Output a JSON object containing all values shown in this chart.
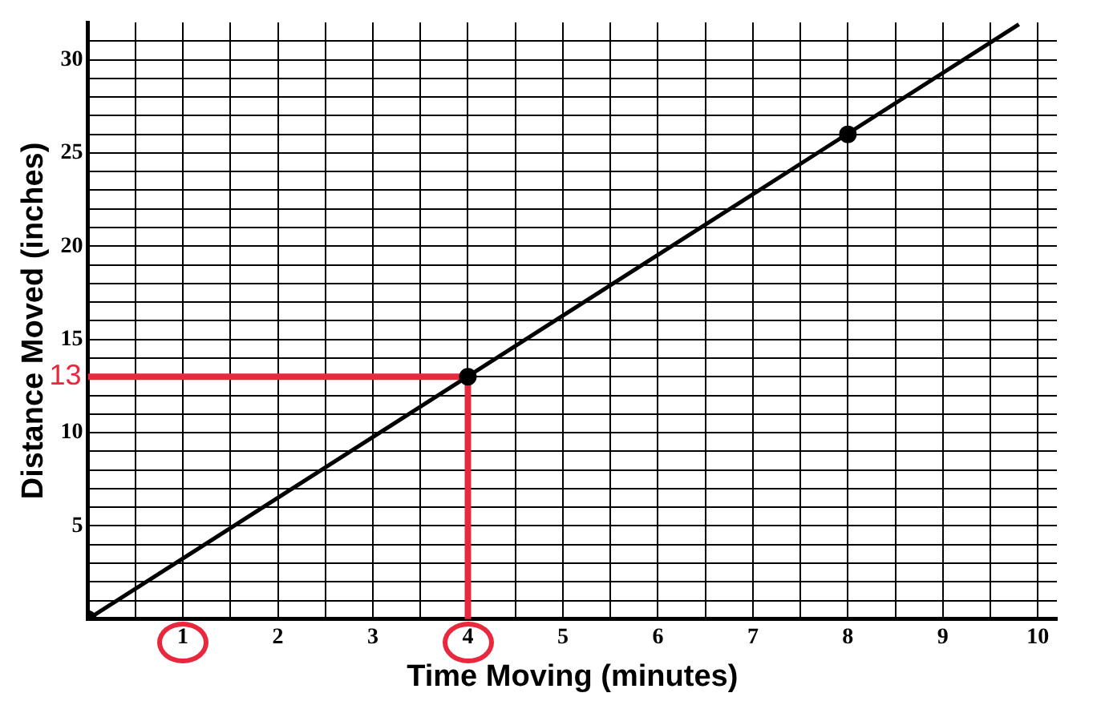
{
  "chart_data": {
    "type": "line",
    "xlabel": "Time Moving (minutes)",
    "ylabel": "Distance Moved (inches)",
    "xlim": [
      0,
      10.2
    ],
    "ylim": [
      0,
      32
    ],
    "xticks": [
      {
        "value": 0,
        "label": null
      },
      {
        "value": 0.5,
        "label": null
      },
      1,
      {
        "value": 1.5,
        "label": null
      },
      2,
      {
        "value": 2.5,
        "label": null
      },
      3,
      {
        "value": 3.5,
        "label": null
      },
      4,
      {
        "value": 4.5,
        "label": null
      },
      5,
      {
        "value": 5.5,
        "label": null
      },
      6,
      {
        "value": 6.5,
        "label": null
      },
      7,
      {
        "value": 7.5,
        "label": null
      },
      8,
      {
        "value": 8.5,
        "label": null
      },
      9,
      {
        "value": 9.5,
        "label": null
      },
      10
    ],
    "yticks": [
      {
        "value": 0,
        "label": null
      },
      {
        "value": 1,
        "label": null
      },
      {
        "value": 2,
        "label": null
      },
      {
        "value": 3,
        "label": null
      },
      {
        "value": 4,
        "label": null
      },
      5,
      {
        "value": 6,
        "label": null
      },
      {
        "value": 7,
        "label": null
      },
      {
        "value": 8,
        "label": null
      },
      {
        "value": 9,
        "label": null
      },
      10,
      {
        "value": 11,
        "label": null
      },
      {
        "value": 12,
        "label": null
      },
      {
        "value": 13,
        "label": null
      },
      {
        "value": 14,
        "label": null
      },
      15,
      {
        "value": 16,
        "label": null
      },
      {
        "value": 17,
        "label": null
      },
      {
        "value": 18,
        "label": null
      },
      {
        "value": 19,
        "label": null
      },
      20,
      {
        "value": 21,
        "label": null
      },
      {
        "value": 22,
        "label": null
      },
      {
        "value": 23,
        "label": null
      },
      {
        "value": 24,
        "label": null
      },
      25,
      {
        "value": 26,
        "label": null
      },
      {
        "value": 27,
        "label": null
      },
      {
        "value": 28,
        "label": null
      },
      {
        "value": 29,
        "label": null
      },
      30,
      {
        "value": 31,
        "label": null
      }
    ],
    "grid": true,
    "legend": false,
    "series": [
      {
        "color": "#000000",
        "marker": "none",
        "x": [
          0,
          9.8
        ],
        "values": [
          0,
          31.9
        ]
      },
      {
        "type": "scatter",
        "color": "#000000",
        "marker": "circle",
        "x": [
          0,
          4,
          8
        ],
        "values": [
          0,
          13,
          26
        ]
      },
      {
        "color": "#e8283c",
        "marker": "none",
        "x": [
          0,
          4,
          4
        ],
        "values": [
          13,
          13,
          0
        ]
      }
    ],
    "annotations": [
      {
        "text": "13",
        "x": 0,
        "y": 13
      }
    ]
  }
}
